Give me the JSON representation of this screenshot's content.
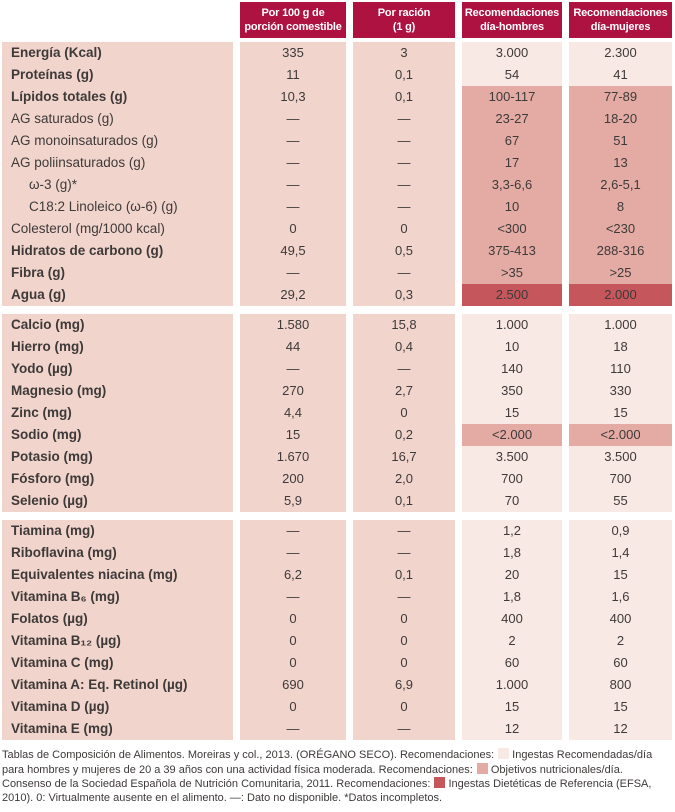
{
  "palette": {
    "header_red": "#ad1240",
    "row_pink": "#f1d4cc",
    "rec_light": "#f9e9e4",
    "rec_mid": "#e3aba4",
    "rec_dark": "#c5565c",
    "text_dark": "#3e3a39",
    "header_text": "#ffffff"
  },
  "table": {
    "columns": [
      {
        "line1": "Por 100 g de",
        "line2": "porción comestible"
      },
      {
        "line1": "Por ración",
        "line2": "(1 g)"
      },
      {
        "line1": "Recomendaciones",
        "line2": "día-hombres"
      },
      {
        "line1": "Recomendaciones",
        "line2": "día-mujeres"
      }
    ],
    "blocks": [
      {
        "rows": [
          {
            "label": "Energía (Kcal)",
            "values": [
              "335",
              "3",
              "3.000",
              "2.300"
            ],
            "bold": true,
            "indent": false,
            "hl": "light"
          },
          {
            "label": "Proteínas (g)",
            "values": [
              "11",
              "0,1",
              "54",
              "41"
            ],
            "bold": true,
            "indent": false,
            "hl": "light"
          },
          {
            "label": "Lípidos totales (g)",
            "values": [
              "10,3",
              "0,1",
              "100-117",
              "77-89"
            ],
            "bold": true,
            "indent": false,
            "hl": "mid"
          },
          {
            "label": "AG saturados (g)",
            "values": [
              "—",
              "—",
              "23-27",
              "18-20"
            ],
            "bold": false,
            "indent": false,
            "hl": "mid"
          },
          {
            "label": "AG monoinsaturados (g)",
            "values": [
              "—",
              "—",
              "67",
              "51"
            ],
            "bold": false,
            "indent": false,
            "hl": "mid"
          },
          {
            "label": "AG poliinsaturados (g)",
            "values": [
              "—",
              "—",
              "17",
              "13"
            ],
            "bold": false,
            "indent": false,
            "hl": "mid"
          },
          {
            "label": "ω-3 (g)*",
            "values": [
              "—",
              "—",
              "3,3-6,6",
              "2,6-5,1"
            ],
            "bold": false,
            "indent": true,
            "hl": "mid"
          },
          {
            "label": "C18:2 Linoleico (ω-6) (g)",
            "values": [
              "—",
              "—",
              "10",
              "8"
            ],
            "bold": false,
            "indent": true,
            "hl": "mid"
          },
          {
            "label": "Colesterol (mg/1000 kcal)",
            "values": [
              "0",
              "0",
              "<300",
              "<230"
            ],
            "bold": false,
            "indent": false,
            "hl": "mid"
          },
          {
            "label": "Hidratos de carbono (g)",
            "values": [
              "49,5",
              "0,5",
              "375-413",
              "288-316"
            ],
            "bold": true,
            "indent": false,
            "hl": "mid"
          },
          {
            "label": "Fibra (g)",
            "values": [
              "—",
              "—",
              ">35",
              ">25"
            ],
            "bold": true,
            "indent": false,
            "hl": "mid"
          },
          {
            "label": "Agua (g)",
            "values": [
              "29,2",
              "0,3",
              "2.500",
              "2.000"
            ],
            "bold": true,
            "indent": false,
            "hl": "dark"
          }
        ]
      },
      {
        "rows": [
          {
            "label": "Calcio (mg)",
            "values": [
              "1.580",
              "15,8",
              "1.000",
              "1.000"
            ],
            "bold": true,
            "indent": false,
            "hl": "light"
          },
          {
            "label": "Hierro (mg)",
            "values": [
              "44",
              "0,4",
              "10",
              "18"
            ],
            "bold": true,
            "indent": false,
            "hl": "light"
          },
          {
            "label": "Yodo (µg)",
            "values": [
              "—",
              "—",
              "140",
              "110"
            ],
            "bold": true,
            "indent": false,
            "hl": "light"
          },
          {
            "label": "Magnesio (mg)",
            "values": [
              "270",
              "2,7",
              "350",
              "330"
            ],
            "bold": true,
            "indent": false,
            "hl": "light"
          },
          {
            "label": "Zinc (mg)",
            "values": [
              "4,4",
              "0",
              "15",
              "15"
            ],
            "bold": true,
            "indent": false,
            "hl": "light"
          },
          {
            "label": "Sodio (mg)",
            "values": [
              "15",
              "0,2",
              "<2.000",
              "<2.000"
            ],
            "bold": true,
            "indent": false,
            "hl": "mid"
          },
          {
            "label": "Potasio (mg)",
            "values": [
              "1.670",
              "16,7",
              "3.500",
              "3.500"
            ],
            "bold": true,
            "indent": false,
            "hl": "light"
          },
          {
            "label": "Fósforo (mg)",
            "values": [
              "200",
              "2,0",
              "700",
              "700"
            ],
            "bold": true,
            "indent": false,
            "hl": "light"
          },
          {
            "label": "Selenio (µg)",
            "values": [
              "5,9",
              "0,1",
              "70",
              "55"
            ],
            "bold": true,
            "indent": false,
            "hl": "light"
          }
        ]
      },
      {
        "rows": [
          {
            "label": "Tiamina (mg)",
            "values": [
              "—",
              "—",
              "1,2",
              "0,9"
            ],
            "bold": true,
            "indent": false,
            "hl": "light"
          },
          {
            "label": "Riboflavina (mg)",
            "values": [
              "—",
              "—",
              "1,8",
              "1,4"
            ],
            "bold": true,
            "indent": false,
            "hl": "light"
          },
          {
            "label": "Equivalentes niacina (mg)",
            "values": [
              "6,2",
              "0,1",
              "20",
              "15"
            ],
            "bold": true,
            "indent": false,
            "hl": "light"
          },
          {
            "label": "Vitamina B₆ (mg)",
            "values": [
              "—",
              "—",
              "1,8",
              "1,6"
            ],
            "bold": true,
            "indent": false,
            "hl": "light"
          },
          {
            "label": "Folatos (µg)",
            "values": [
              "0",
              "0",
              "400",
              "400"
            ],
            "bold": true,
            "indent": false,
            "hl": "light"
          },
          {
            "label": "Vitamina B₁₂ (µg)",
            "values": [
              "0",
              "0",
              "2",
              "2"
            ],
            "bold": true,
            "indent": false,
            "hl": "light"
          },
          {
            "label": "Vitamina C (mg)",
            "values": [
              "0",
              "0",
              "60",
              "60"
            ],
            "bold": true,
            "indent": false,
            "hl": "light"
          },
          {
            "label": "Vitamina A: Eq. Retinol (µg)",
            "values": [
              "690",
              "6,9",
              "1.000",
              "800"
            ],
            "bold": true,
            "indent": false,
            "hl": "light"
          },
          {
            "label": "Vitamina D (µg)",
            "values": [
              "0",
              "0",
              "15",
              "15"
            ],
            "bold": true,
            "indent": false,
            "hl": "light"
          },
          {
            "label": "Vitamina E (mg)",
            "values": [
              "—",
              "—",
              "12",
              "12"
            ],
            "bold": true,
            "indent": false,
            "hl": "light"
          }
        ]
      }
    ]
  },
  "footer": {
    "seg1": "Tablas de Composición de Alimentos. Moreiras y col., 2013. (ORÉGANO SECO). Recomendaciones:",
    "seg2": "Ingestas Recomendadas/día para hombres y mujeres de 20 a 39 años con una actividad física moderada. Recomendaciones:",
    "seg3": "Objetivos nutricionales/día. Consenso de la Sociedad Española de Nutrición Comunitaria, 2011. Recomendaciones:",
    "seg4": "Ingestas Dietéticas de Referencia (EFSA, 2010). 0: Virtualmente ausente en el alimento. —: Dato no disponible. *Datos incompletos."
  }
}
